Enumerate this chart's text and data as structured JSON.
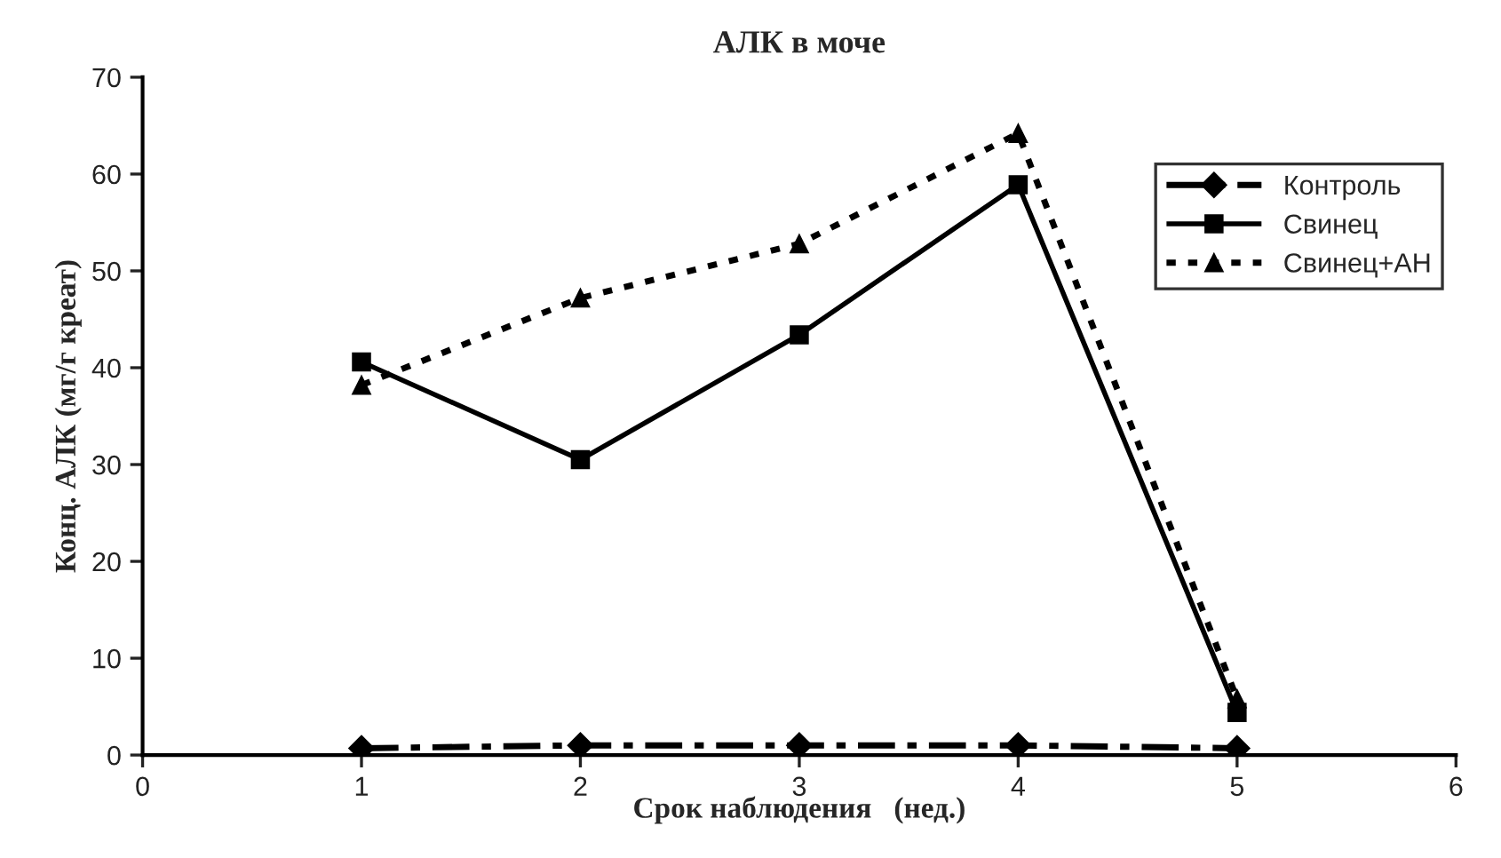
{
  "chart_data": {
    "type": "line",
    "title": "АЛК в моче",
    "xlabel": "Срок наблюдения   (нед.)",
    "ylabel": "Конц. АЛК (мг/г креат)",
    "x": [
      1,
      2,
      3,
      4,
      5
    ],
    "series": [
      {
        "name": "Контроль",
        "color": "#000000",
        "values": [
          0.7,
          1,
          1,
          1,
          0.7
        ],
        "marker": "diamond",
        "line_style": "dashdot"
      },
      {
        "name": "Свинец",
        "color": "#000000",
        "values": [
          40.6,
          30.5,
          43.4,
          58.9,
          4.4
        ],
        "marker": "square",
        "line_style": "solid"
      },
      {
        "name": "Свинец+АН",
        "color": "#000000",
        "values": [
          38.2,
          47.2,
          52.8,
          64.2,
          5.8
        ],
        "marker": "triangle",
        "line_style": "dotted"
      }
    ],
    "xlim": [
      0,
      6
    ],
    "xticks": [
      0,
      1,
      2,
      3,
      4,
      5,
      6
    ],
    "ylim": [
      0,
      70
    ],
    "yticks": [
      0,
      10,
      20,
      30,
      40,
      50,
      60,
      70
    ],
    "grid": false,
    "legend": "right"
  }
}
